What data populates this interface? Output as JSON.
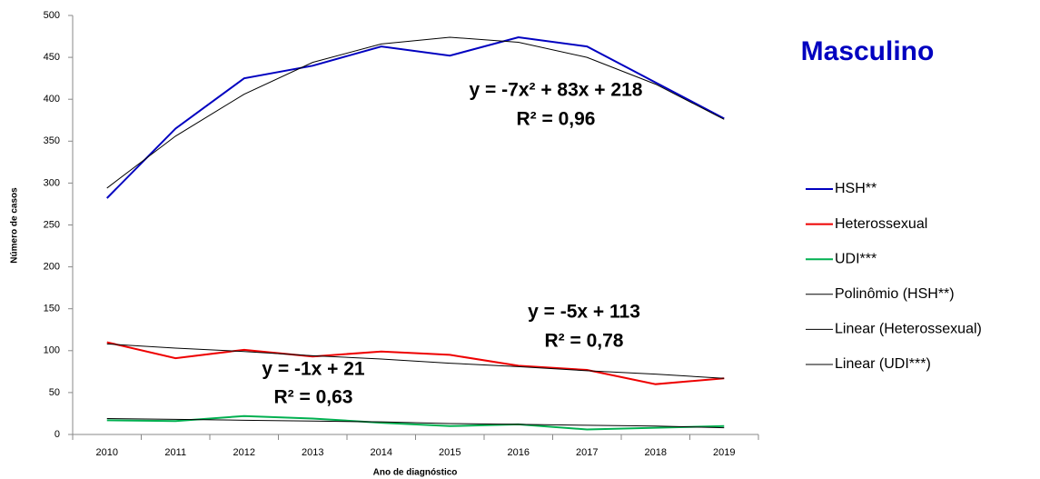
{
  "chart_data": {
    "type": "line",
    "title": "Masculino",
    "xlabel": "Ano de diagnóstico",
    "ylabel": "Número de casos",
    "categories": [
      "2010",
      "2011",
      "2012",
      "2013",
      "2014",
      "2015",
      "2016",
      "2017",
      "2018",
      "2019"
    ],
    "ylim": [
      0,
      500
    ],
    "yticks": [
      0,
      50,
      100,
      150,
      200,
      250,
      300,
      350,
      400,
      450,
      500
    ],
    "grid": false,
    "legend": "right",
    "series": [
      {
        "name": "HSH**",
        "color": "#0000c0",
        "values": [
          282,
          365,
          425,
          440,
          463,
          452,
          474,
          463,
          420,
          377
        ]
      },
      {
        "name": "Heterossexual",
        "color": "#ee0000",
        "values": [
          110,
          91,
          101,
          93,
          99,
          95,
          82,
          77,
          60,
          67
        ]
      },
      {
        "name": "UDI***",
        "color": "#00b050",
        "values": [
          17,
          16,
          22,
          19,
          14,
          10,
          12,
          6,
          8,
          10
        ]
      },
      {
        "name": "Polinômio (HSH**)",
        "color": "#000000",
        "trend": true,
        "values": [
          294,
          356,
          406,
          444,
          466,
          474,
          468,
          450,
          418,
          376
        ]
      },
      {
        "name": "Linear (Heterossexual)",
        "color": "#000000",
        "trend": true,
        "values": [
          108,
          103,
          99,
          94,
          90,
          85,
          81,
          76,
          72,
          67
        ]
      },
      {
        "name": "Linear (UDI***)",
        "color": "#000000",
        "trend": true,
        "values": [
          19,
          18,
          17,
          16,
          15,
          13,
          12,
          11,
          10,
          8
        ]
      }
    ],
    "annotations": [
      {
        "text": "y = -7x² + 83x + 218",
        "color": "#0000c0"
      },
      {
        "text": "R² = 0,96",
        "color": "#0000c0"
      },
      {
        "text": "y = -5x + 113",
        "color": "#ee0000"
      },
      {
        "text": "R² = 0,78",
        "color": "#ee0000"
      },
      {
        "text": "y = -1x + 21",
        "color": "#00b050"
      },
      {
        "text": "R² = 0,63",
        "color": "#00b050"
      }
    ]
  }
}
